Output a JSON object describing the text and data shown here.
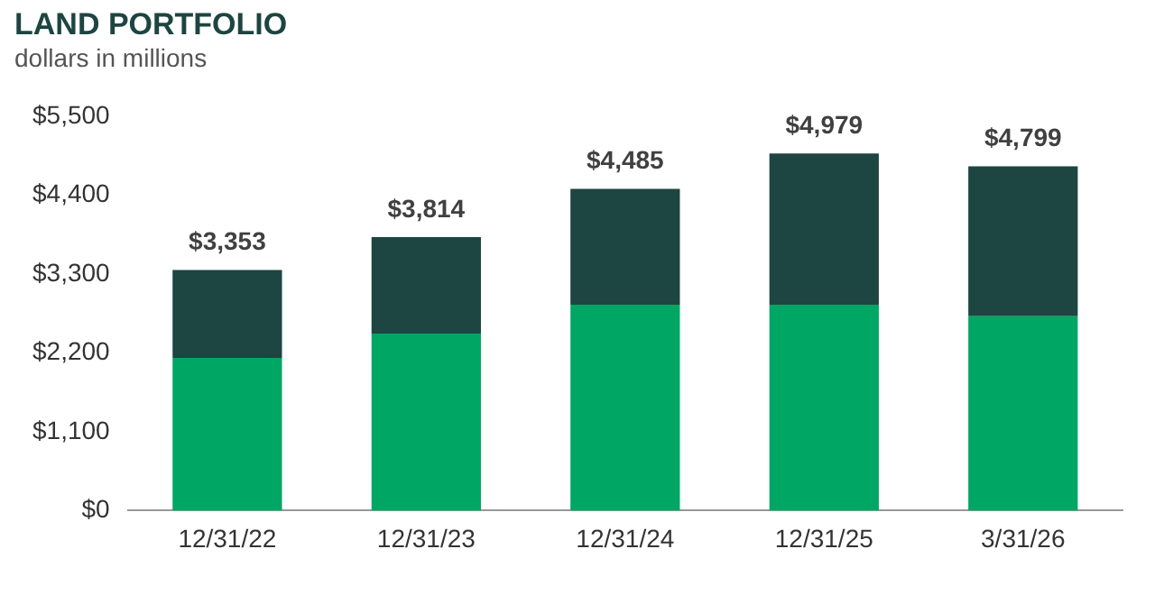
{
  "chart_data": {
    "type": "bar",
    "title": "LAND PORTFOLIO",
    "subtitle": "dollars in millions",
    "categories": [
      "12/31/22",
      "12/31/23",
      "12/31/24",
      "12/31/25",
      "3/31/26"
    ],
    "stacked": true,
    "series": [
      {
        "color": "#00a664",
        "values": [
          2130,
          2470,
          2870,
          2870,
          2710
        ]
      },
      {
        "color": "#1d4541",
        "values": [
          1223,
          1344,
          1615,
          2109,
          2089
        ]
      }
    ],
    "totals": [
      "$3,353",
      "$3,814",
      "$4,485",
      "$4,979",
      "$4,799"
    ],
    "ylim": [
      0,
      5500
    ],
    "yticks": [
      {
        "value": 0,
        "label": "$0"
      },
      {
        "value": 1100,
        "label": "$1,100"
      },
      {
        "value": 2200,
        "label": "$2,200"
      },
      {
        "value": 3300,
        "label": "$3,300"
      },
      {
        "value": 4400,
        "label": "$4,400"
      },
      {
        "value": 5500,
        "label": "$5,500"
      }
    ],
    "grid": false,
    "legend": false
  }
}
